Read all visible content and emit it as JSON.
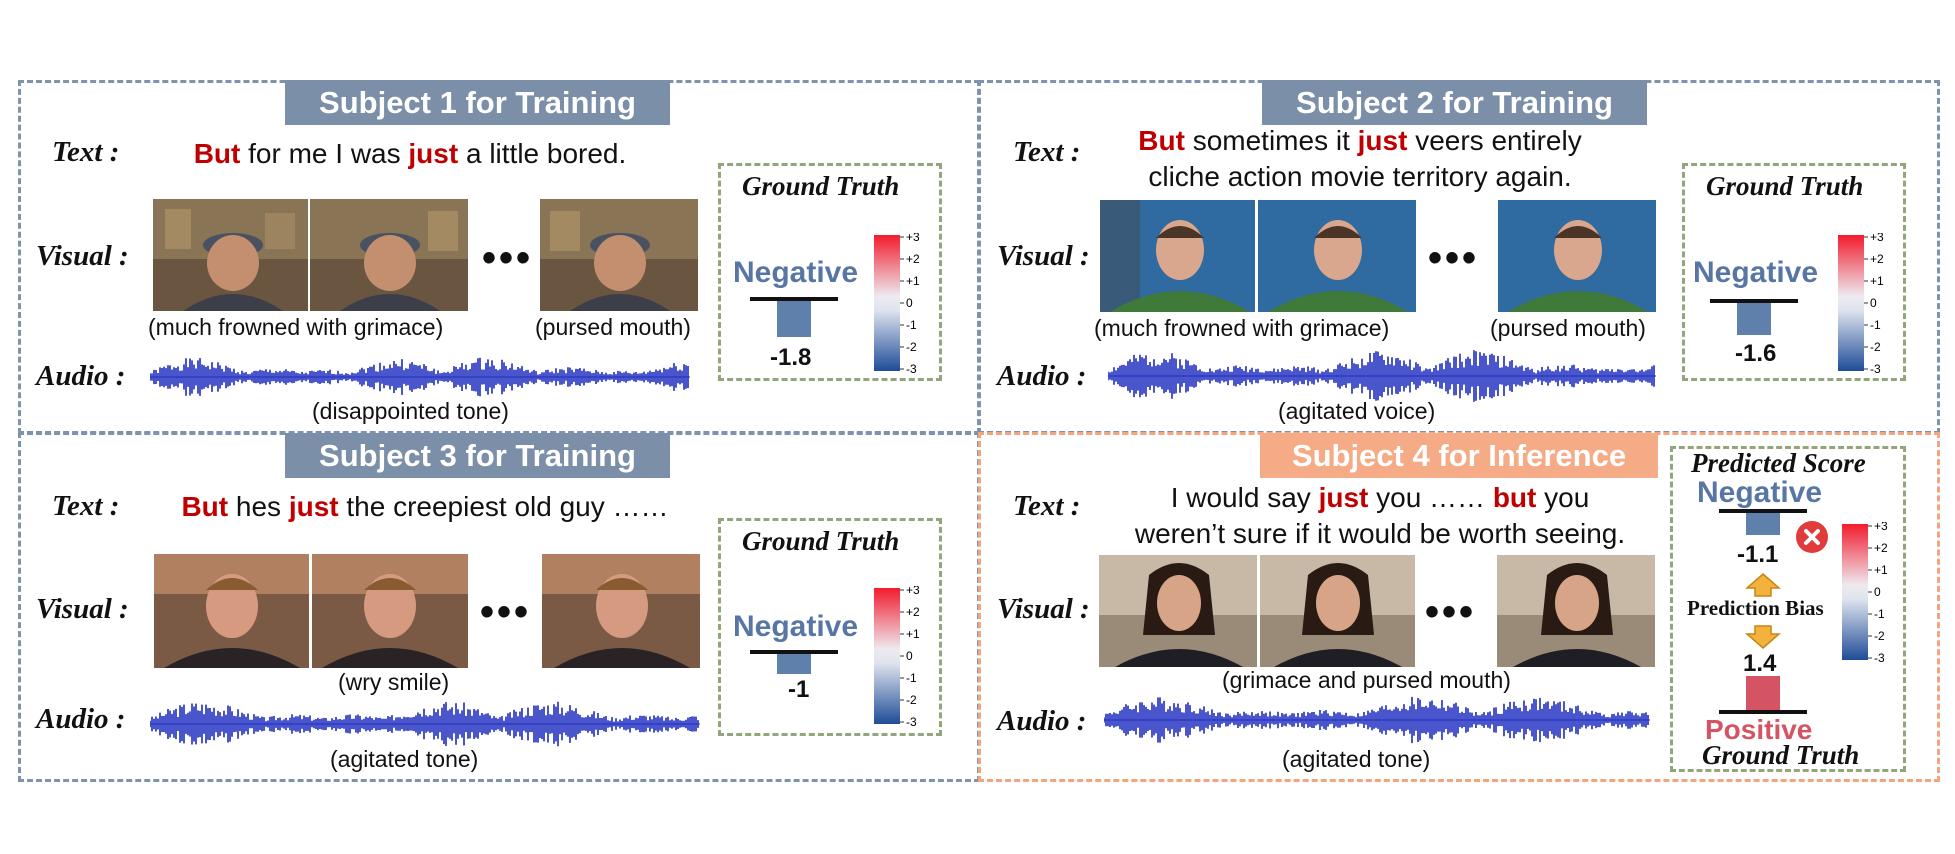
{
  "row_labels": {
    "text": "Text :",
    "visual": "Visual :",
    "audio": "Audio :"
  },
  "ground_truth_label": "Ground Truth",
  "scale_ticks": [
    "+3",
    "+2",
    "+1",
    "0",
    "-1",
    "-2",
    "-3"
  ],
  "ellipsis": "•••",
  "colors": {
    "training_title_bg": "#7b8fa8",
    "inference_title_bg": "#f4ab86",
    "keyword": "#c00000",
    "negative": "#5776a3",
    "positive": "#d45463",
    "ground_truth_border": "#93a57a"
  },
  "subjects": [
    {
      "title": "Subject 1 for Training",
      "sentence": [
        {
          "t": "But",
          "k": true
        },
        {
          "t": " for me I was ",
          "k": false
        },
        {
          "t": "just",
          "k": true
        },
        {
          "t": " a little bored.",
          "k": false
        }
      ],
      "caption_left": "(much frowned with grimace)",
      "caption_right": "(pursed mouth)",
      "audio_caption": "(disappointed tone)",
      "sentiment": "Negative",
      "ground_truth_value": "-1.8"
    },
    {
      "title": "Subject 2 for Training",
      "sentence": [
        {
          "t": "But",
          "k": true
        },
        {
          "t": " sometimes it ",
          "k": false
        },
        {
          "t": "just",
          "k": true
        },
        {
          "t": " veers entirely",
          "k": false
        }
      ],
      "sentence_line2": "cliche action movie territory again.",
      "caption_left": "(much frowned with grimace)",
      "caption_right": "(pursed mouth)",
      "audio_caption": "(agitated voice)",
      "sentiment": "Negative",
      "ground_truth_value": "-1.6"
    },
    {
      "title": "Subject 3 for Training",
      "sentence": [
        {
          "t": "But",
          "k": true
        },
        {
          "t": " hes ",
          "k": false
        },
        {
          "t": "just",
          "k": true
        },
        {
          "t": " the creepiest old guy ……",
          "k": false
        }
      ],
      "caption_center": "(wry smile)",
      "audio_caption": "(agitated tone)",
      "sentiment": "Negative",
      "ground_truth_value": "-1"
    },
    {
      "title": "Subject 4 for Inference",
      "sentence": [
        {
          "t": "I would say ",
          "k": false
        },
        {
          "t": "just",
          "k": true
        },
        {
          "t": " you …… ",
          "k": false
        },
        {
          "t": "but",
          "k": true
        },
        {
          "t": " you",
          "k": false
        }
      ],
      "sentence_line2": "weren’t sure if it would be worth seeing.",
      "caption_center": "(grimace and pursed mouth)",
      "audio_caption": "(agitated tone)",
      "predicted_title": "Predicted Score",
      "predicted_sentiment": "Negative",
      "predicted_value": "-1.1",
      "bias_label": "Prediction Bias",
      "ground_truth_value": "1.4",
      "ground_truth_sentiment": "Positive"
    }
  ]
}
